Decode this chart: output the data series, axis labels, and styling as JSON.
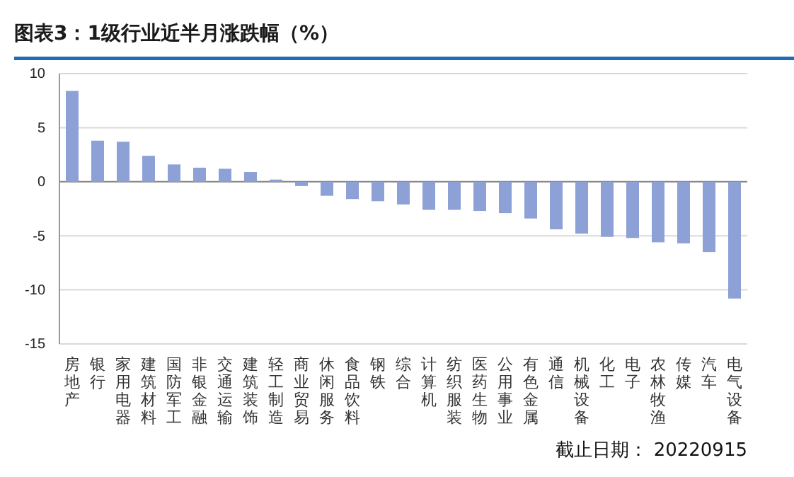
{
  "chart_data": {
    "type": "bar",
    "title": "图表3：1级行业近半月涨跌幅（%）",
    "categories": [
      "房地产",
      "银行",
      "家用电器",
      "建筑材料",
      "国防军工",
      "非银金融",
      "交通运输",
      "建筑装饰",
      "轻工制造",
      "商业贸易",
      "休闲服务",
      "食品饮料",
      "钢铁",
      "综合",
      "计算机",
      "纺织服装",
      "医药生物",
      "公用事业",
      "有色金属",
      "通信",
      "机械设备",
      "化工",
      "电子",
      "农林牧渔",
      "传媒",
      "汽车",
      "电气设备"
    ],
    "values": [
      8.4,
      3.8,
      3.7,
      2.4,
      1.6,
      1.3,
      1.2,
      0.9,
      0.2,
      -0.4,
      -1.3,
      -1.6,
      -1.8,
      -2.1,
      -2.6,
      -2.6,
      -2.7,
      -2.9,
      -3.4,
      -4.4,
      -4.8,
      -5.1,
      -5.2,
      -5.6,
      -5.7,
      -6.5,
      -10.8
    ],
    "color": "#8ea1d6",
    "ylim": [
      -15,
      10
    ],
    "yticks": [
      -15,
      -10,
      -5,
      0,
      5,
      10
    ],
    "grid": "y",
    "annotations": [
      "截止日期： 20220915"
    ]
  }
}
